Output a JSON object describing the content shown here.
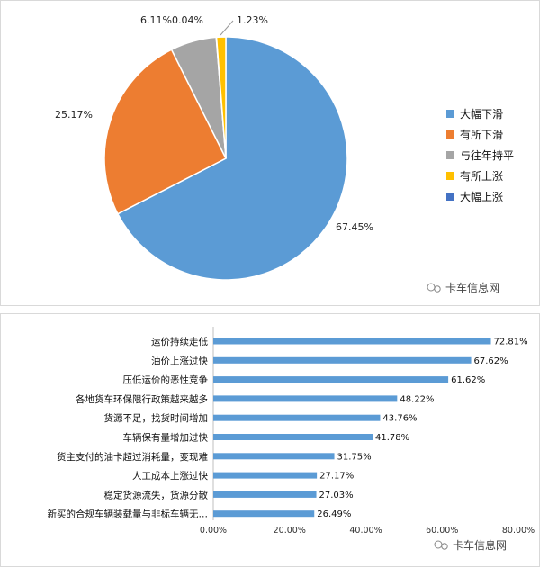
{
  "watermark": "卡车信息网",
  "chart_data": [
    {
      "type": "pie",
      "title": "",
      "slices": [
        {
          "name": "大幅下滑",
          "value": 67.45,
          "label": "67.45%",
          "color": "#5b9bd5"
        },
        {
          "name": "有所下滑",
          "value": 25.17,
          "label": "25.17%",
          "color": "#ed7d31"
        },
        {
          "name": "与往年持平",
          "value": 6.11,
          "label": "6.11%",
          "color": "#a5a5a5"
        },
        {
          "name": "有所上涨",
          "value": 1.23,
          "label": "1.23%",
          "color": "#ffc000"
        },
        {
          "name": "大幅上涨",
          "value": 0.04,
          "label": "0.04%",
          "color": "#4472c4"
        }
      ],
      "legend_position": "right"
    },
    {
      "type": "bar",
      "orientation": "horizontal",
      "title": "",
      "categories": [
        "运价持续走低",
        "油价上涨过快",
        "压低运价的恶性竞争",
        "各地货车环保限行政策越来越多",
        "货源不足，找货时间增加",
        "车辆保有量增加过快",
        "货主支付的油卡超过消耗量，变现难",
        "人工成本上涨过快",
        "稳定货源流失，货源分散",
        "新买的合规车辆装载量与非标车辆无…"
      ],
      "values": [
        72.81,
        67.62,
        61.62,
        48.22,
        43.76,
        41.78,
        31.75,
        27.17,
        27.03,
        26.49
      ],
      "value_labels": [
        "72.81%",
        "67.62%",
        "61.62%",
        "48.22%",
        "43.76%",
        "41.78%",
        "31.75%",
        "27.17%",
        "27.03%",
        "26.49%"
      ],
      "xlim": [
        0,
        80
      ],
      "xticks": [
        "0.00%",
        "20.00%",
        "40.00%",
        "60.00%",
        "80.00%"
      ],
      "bar_color": "#5b9bd5",
      "grid": false
    }
  ]
}
